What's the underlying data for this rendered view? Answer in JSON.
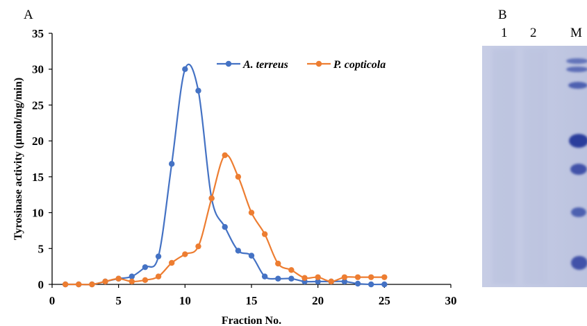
{
  "panel_a_label": "A",
  "panel_b_label": "B",
  "gel": {
    "lane_labels": [
      "1",
      "2",
      "M"
    ]
  },
  "colors": {
    "series_1": "#4472c4",
    "series_2": "#ed7d31",
    "gel_background": "#c9cfe6",
    "gel_band": "#3b4ea5"
  },
  "chart_data": {
    "type": "line",
    "title": "",
    "xlabel": "Fraction No.",
    "ylabel": "Tyrosinase activity (µmol/mg/min)",
    "xlim": [
      0,
      30
    ],
    "ylim": [
      0,
      35
    ],
    "xticks": [
      0,
      5,
      10,
      15,
      20,
      25,
      30
    ],
    "yticks": [
      0,
      5,
      10,
      15,
      20,
      25,
      30,
      35
    ],
    "grid": false,
    "legend_position": "top-right",
    "smooth": true,
    "series": [
      {
        "name": "A. terreus",
        "x": [
          1,
          2,
          3,
          4,
          5,
          6,
          7,
          8,
          9,
          10,
          11,
          12,
          13,
          14,
          15,
          16,
          17,
          18,
          19,
          20,
          21,
          22,
          23,
          24,
          25
        ],
        "y": [
          0,
          0,
          0,
          0.4,
          0.8,
          1.1,
          2.4,
          3.9,
          16.8,
          30,
          27,
          12,
          8,
          4.7,
          4,
          1.1,
          0.8,
          0.8,
          0.4,
          0.4,
          0.4,
          0.4,
          0.1,
          0,
          0
        ]
      },
      {
        "name": "P. copticola",
        "x": [
          1,
          2,
          3,
          4,
          5,
          6,
          7,
          8,
          9,
          10,
          11,
          12,
          13,
          14,
          15,
          16,
          17,
          18,
          19,
          20,
          21,
          22,
          23,
          24,
          25
        ],
        "y": [
          0,
          0,
          0,
          0.4,
          0.8,
          0.4,
          0.6,
          1.1,
          3,
          4.2,
          5.3,
          12,
          18,
          15,
          10,
          7,
          2.9,
          2,
          0.9,
          1,
          0.4,
          1,
          1,
          1,
          1
        ]
      }
    ]
  }
}
